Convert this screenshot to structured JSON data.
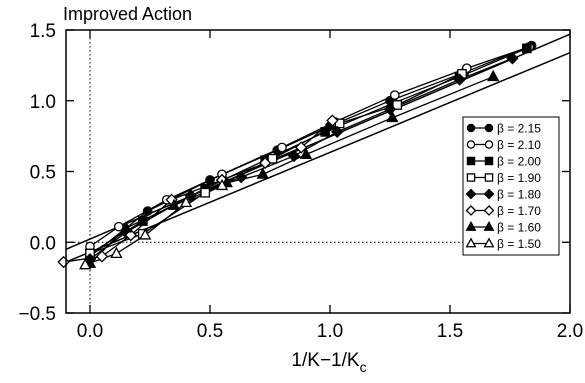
{
  "chart_data": {
    "type": "scatter",
    "title": "Improved Action",
    "xlabel": "1/K−1/K",
    "xlabel_subscript": "c",
    "ylabel": "",
    "xlim": [
      -0.1,
      2.0
    ],
    "ylim": [
      -0.5,
      1.5
    ],
    "x_ticks": [
      "0.0",
      "0.5",
      "1.0",
      "1.5",
      "2.0"
    ],
    "x_tick_values": [
      0.0,
      0.5,
      1.0,
      1.5,
      2.0
    ],
    "y_ticks": [
      "−0.5",
      "0.0",
      "0.5",
      "1.0",
      "1.5"
    ],
    "y_tick_values": [
      -0.5,
      0.0,
      0.5,
      1.0,
      1.5
    ],
    "grid": false,
    "reference_lines": [
      {
        "axis": "x",
        "value": 0.0,
        "style": "dotted"
      },
      {
        "axis": "y",
        "value": 0.0,
        "style": "dotted"
      }
    ],
    "legend_position": "right",
    "series": [
      {
        "name": "β = 2.15",
        "marker": "circle",
        "filled": true,
        "x": [
          0.0,
          0.24,
          0.5,
          0.78,
          1.0,
          1.25,
          1.56,
          1.84
        ],
        "y": [
          -0.1,
          0.22,
          0.44,
          0.65,
          0.82,
          1.0,
          1.2,
          1.39
        ]
      },
      {
        "name": "β = 2.10",
        "marker": "circle",
        "filled": false,
        "x": [
          0.0,
          0.12,
          0.32,
          0.55,
          0.8,
          1.02,
          1.27,
          1.57,
          1.83
        ],
        "y": [
          -0.03,
          0.11,
          0.3,
          0.48,
          0.67,
          0.85,
          1.04,
          1.23,
          1.38
        ]
      },
      {
        "name": "β = 2.00",
        "marker": "square",
        "filled": true,
        "x": [
          0.0,
          0.22,
          0.48,
          0.73,
          0.98,
          1.26,
          1.54,
          1.82
        ],
        "y": [
          -0.08,
          0.15,
          0.38,
          0.58,
          0.78,
          0.98,
          1.17,
          1.37
        ]
      },
      {
        "name": "β = 1.90",
        "marker": "square",
        "filled": false,
        "x": [
          0.0,
          0.22,
          0.48,
          0.76,
          1.04,
          1.28,
          1.55
        ],
        "y": [
          -0.08,
          0.06,
          0.35,
          0.59,
          0.84,
          0.97,
          1.19
        ]
      },
      {
        "name": "β = 1.80",
        "marker": "diamond",
        "filled": true,
        "x": [
          0.0,
          0.15,
          0.42,
          0.63,
          0.85,
          1.03,
          1.25,
          1.54,
          1.76
        ],
        "y": [
          -0.12,
          0.07,
          0.33,
          0.46,
          0.61,
          0.78,
          0.94,
          1.15,
          1.3
        ]
      },
      {
        "name": "β = 1.70",
        "marker": "diamond",
        "filled": false,
        "x": [
          -0.11,
          0.05,
          0.17,
          0.34,
          0.55,
          0.73,
          0.88,
          1.01
        ],
        "y": [
          -0.14,
          -0.1,
          0.05,
          0.3,
          0.44,
          0.56,
          0.67,
          0.86
        ]
      },
      {
        "name": "β = 1.60",
        "marker": "triangle",
        "filled": true,
        "x": [
          0.0,
          0.15,
          0.35,
          0.57,
          0.72,
          0.9,
          1.26,
          1.68
        ],
        "y": [
          -0.15,
          0.1,
          0.26,
          0.42,
          0.48,
          0.62,
          0.88,
          1.17
        ]
      },
      {
        "name": "β = 1.50",
        "marker": "triangle",
        "filled": false,
        "x": [
          -0.02,
          0.11,
          0.23,
          0.4,
          0.55
        ],
        "y": [
          -0.16,
          -0.08,
          0.05,
          0.28,
          0.4
        ]
      }
    ],
    "fit_lines": [
      {
        "x": [
          -0.1,
          2.0
        ],
        "y": [
          -0.14,
          1.34
        ]
      },
      {
        "x": [
          -0.1,
          2.0
        ],
        "y": [
          -0.05,
          1.47
        ]
      }
    ]
  }
}
